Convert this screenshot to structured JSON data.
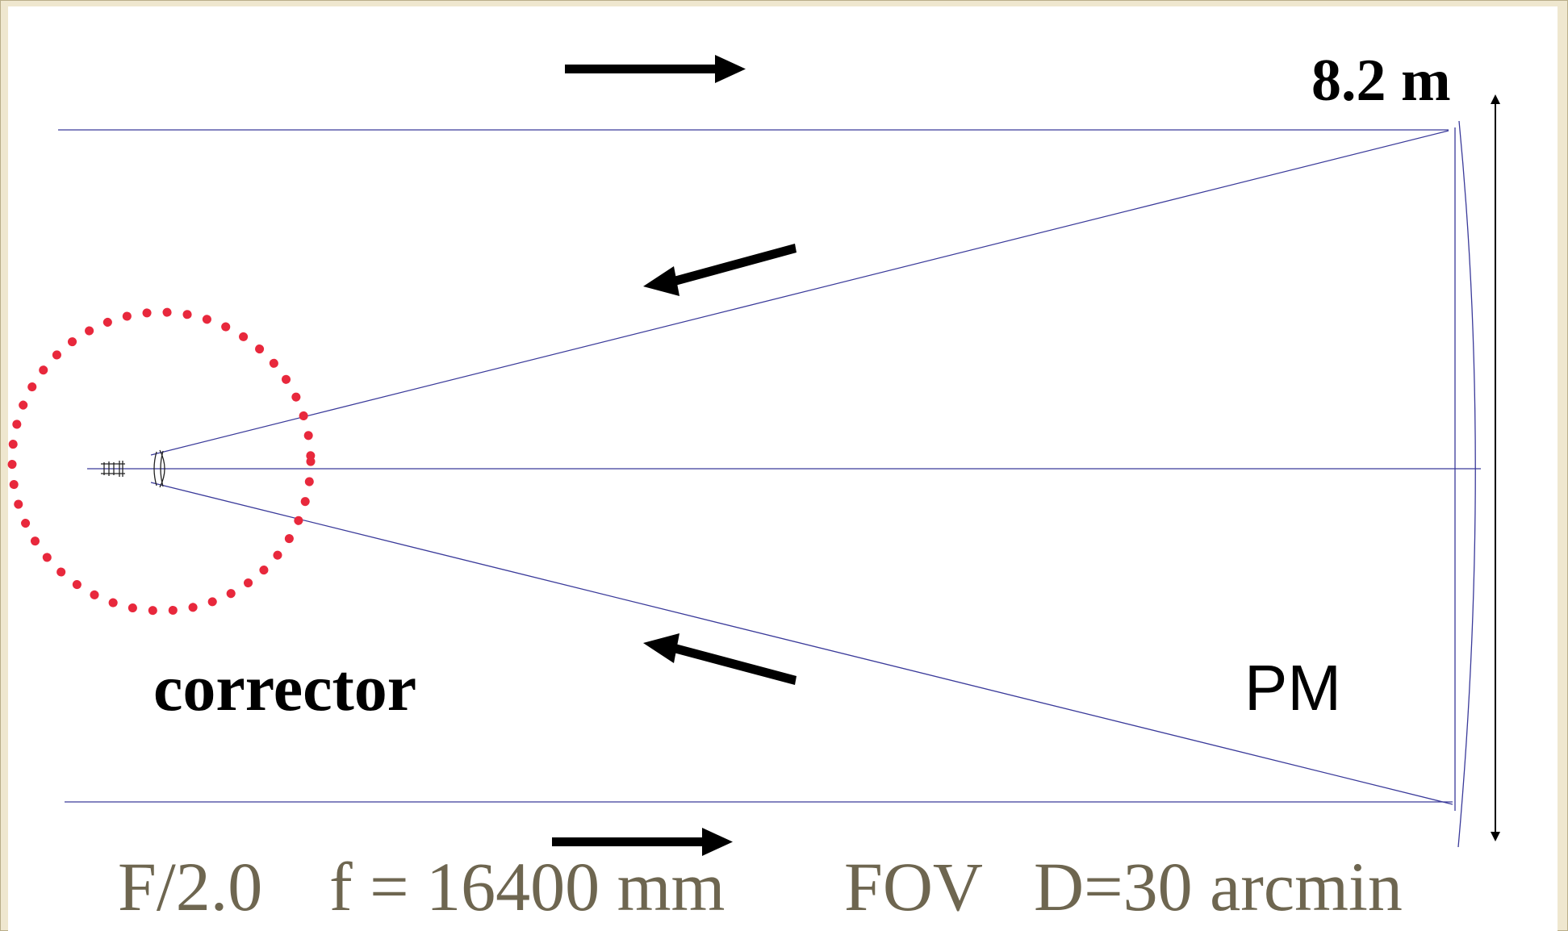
{
  "diagram": {
    "aperture_label": "8.2 m",
    "corrector_label": "corrector",
    "primary_mirror_label": "PM",
    "caption": {
      "focal_ratio": "F/2.0",
      "focal_length": "f = 16400 mm",
      "fov": "FOV",
      "fov_value": "D=30 arcmin"
    },
    "colors": {
      "rays": "#3a3a9a",
      "corrector_circle": "#e8283c",
      "arrows": "#000000",
      "caption_text": "#6e6650",
      "background": "#efe7cf"
    }
  }
}
